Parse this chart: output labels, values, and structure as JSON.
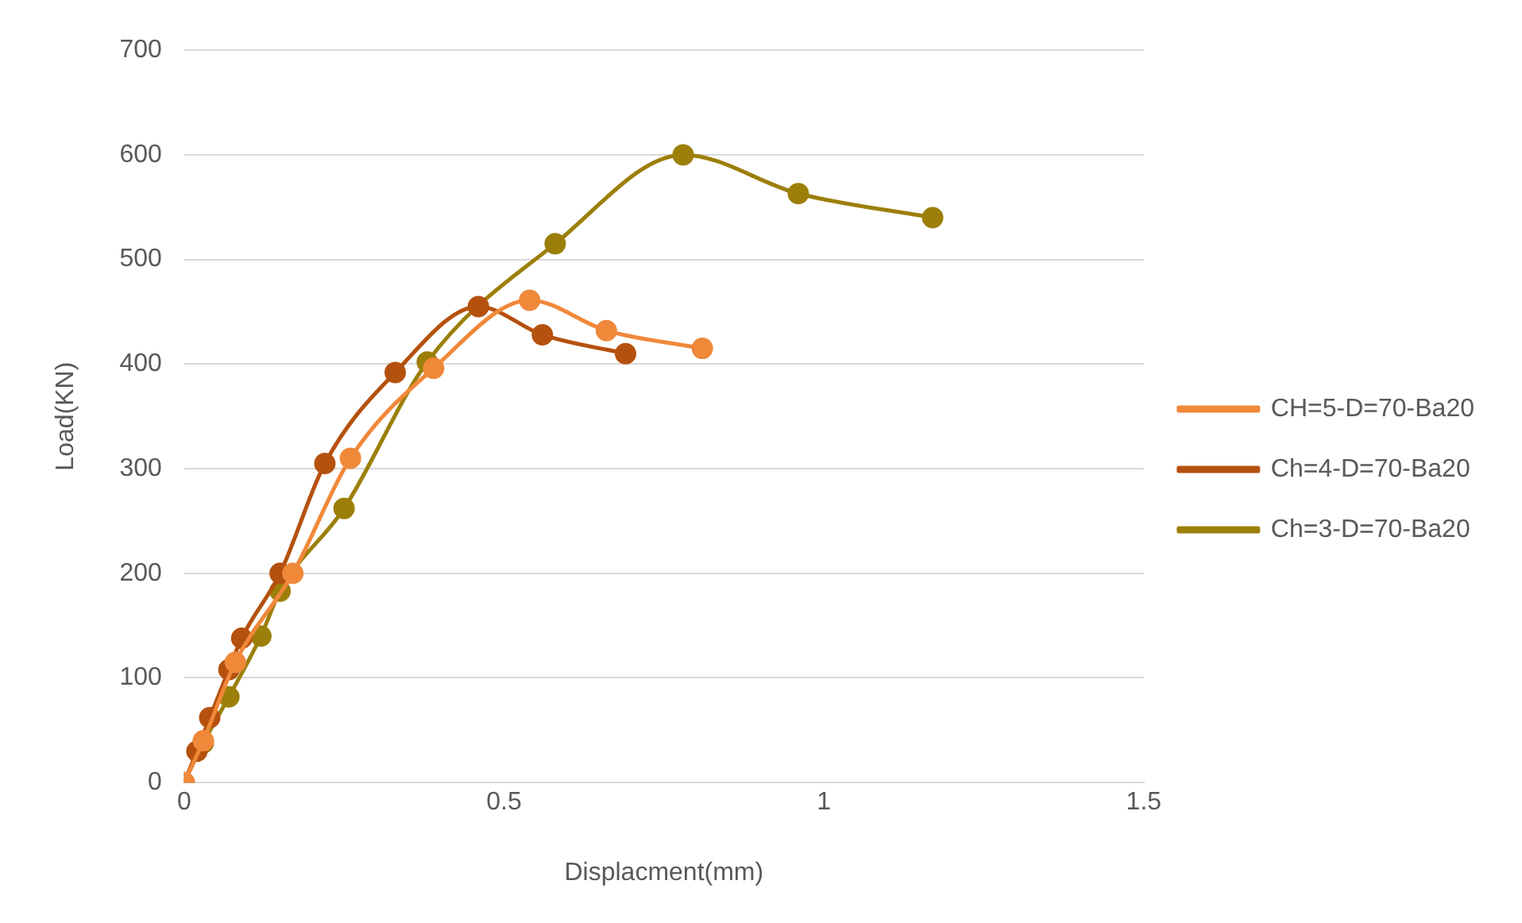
{
  "chart_data": {
    "type": "line",
    "xlabel": "Displacment(mm)",
    "ylabel": "Load(KN)",
    "xlim": [
      0,
      1.5
    ],
    "xticks": [
      0,
      0.5,
      1,
      1.5
    ],
    "ylim": [
      0,
      700
    ],
    "yticks": [
      0,
      100,
      200,
      300,
      400,
      500,
      600,
      700
    ],
    "grid": "y",
    "legend": "right",
    "marker": "circle",
    "line_style": "solid",
    "series": [
      {
        "name": "CH=5-D=70-Ba20",
        "color": "#f0883a",
        "x": [
          0,
          0.03,
          0.08,
          0.17,
          0.26,
          0.39,
          0.54,
          0.66,
          0.81
        ],
        "values": [
          0,
          40,
          115,
          200,
          310,
          396,
          461,
          432,
          415
        ]
      },
      {
        "name": "Ch=4-D=70-Ba20",
        "color": "#b5510e",
        "x": [
          0,
          0.02,
          0.04,
          0.07,
          0.09,
          0.15,
          0.22,
          0.33,
          0.46,
          0.56,
          0.69
        ],
        "values": [
          0,
          30,
          62,
          108,
          138,
          200,
          305,
          392,
          455,
          428,
          410
        ]
      },
      {
        "name": "Ch=3-D=70-Ba20",
        "color": "#9c7f0a",
        "x": [
          0,
          0.03,
          0.07,
          0.12,
          0.15,
          0.25,
          0.38,
          0.58,
          0.78,
          0.96,
          1.17
        ],
        "values": [
          0,
          38,
          82,
          140,
          183,
          262,
          402,
          515,
          600,
          563,
          540
        ]
      }
    ]
  }
}
